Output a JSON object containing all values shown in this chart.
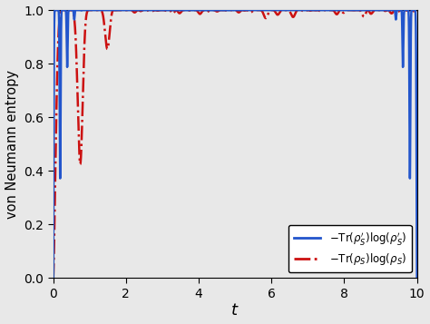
{
  "title": "",
  "xlabel": "$t$",
  "ylabel": "von Neumann entropy",
  "xlim": [
    0,
    10
  ],
  "ylim": [
    0.0,
    1.0
  ],
  "yticks": [
    0.0,
    0.2,
    0.4,
    0.6,
    0.8,
    1.0
  ],
  "xticks": [
    0,
    2,
    4,
    6,
    8,
    10
  ],
  "blue_color": "#2255cc",
  "red_color": "#cc1111",
  "hline_color": "#aaaaaa",
  "hline_y": 1.0,
  "legend_labels": [
    "$-\\mathrm{Tr}(\\rho_S^{\\prime}) \\log(\\rho_S^{\\prime})$",
    "$-\\mathrm{Tr}(\\rho_S) \\log(\\rho_S)$"
  ],
  "background_color": "#e8e8e8",
  "t_max": 10.0,
  "n_points": 8000
}
